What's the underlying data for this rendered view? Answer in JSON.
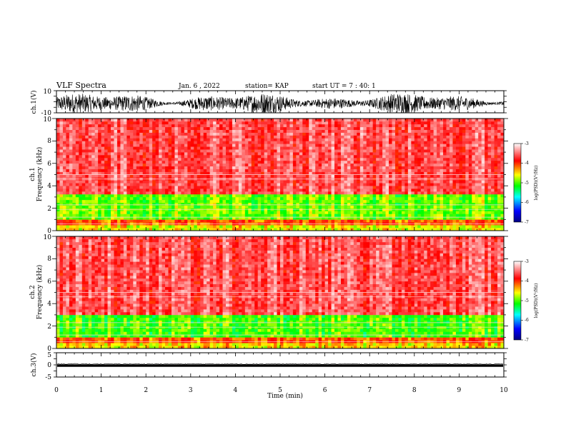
{
  "header": {
    "title": "VLF Spectra",
    "date": "Jan. 6 , 2022",
    "station": "station= KAP",
    "start": "start UT =  7 : 40: 1"
  },
  "colors": {
    "waveform": "#000000",
    "spectrogram_scale": [
      "#000080",
      "#0000ff",
      "#00ffff",
      "#00ff00",
      "#ffff00",
      "#ff0000",
      "#ffffff"
    ]
  },
  "chart_data": [
    {
      "id": "ch1-waveform",
      "type": "line",
      "ylabel": "ch.1(V)",
      "ylim": [
        -10,
        10
      ],
      "yticks": [
        "10",
        "-10"
      ],
      "xlim": [
        0,
        10
      ],
      "note": "dense broadband noise filling most of the amplitude range"
    },
    {
      "id": "ch1-spectrogram",
      "type": "heatmap",
      "ylabel_channel": "ch.1",
      "ylabel": "Frequency (kHz)",
      "ylim": [
        0,
        10
      ],
      "yticks": [
        "0",
        "2",
        "4",
        "6",
        "8",
        "10"
      ],
      "xlim": [
        0,
        10
      ],
      "bands": [
        {
          "from": 0,
          "to": 0.5,
          "level": -4.6
        },
        {
          "from": 0.5,
          "to": 1.0,
          "level": -4.1
        },
        {
          "from": 1.0,
          "to": 3.2,
          "level": -4.9
        },
        {
          "from": 3.2,
          "to": 10,
          "level": -3.6
        }
      ],
      "colorbar": {
        "label": "log(PSD)(V²/Hz)",
        "range": [
          -7,
          -3
        ],
        "ticks": [
          "-3",
          "-4",
          "-5",
          "-6",
          "-7"
        ]
      }
    },
    {
      "id": "ch2-spectrogram",
      "type": "heatmap",
      "ylabel_channel": "ch.2",
      "ylabel": "Frequency (kHz)",
      "ylim": [
        0,
        10
      ],
      "yticks": [
        "0",
        "2",
        "4",
        "6",
        "8",
        "10"
      ],
      "xlim": [
        0,
        10
      ],
      "bands": [
        {
          "from": 0,
          "to": 0.5,
          "level": -4.5
        },
        {
          "from": 0.5,
          "to": 1.0,
          "level": -4.1
        },
        {
          "from": 1.0,
          "to": 3.0,
          "level": -5.0
        },
        {
          "from": 3.0,
          "to": 10,
          "level": -3.6
        }
      ],
      "colorbar": {
        "label": "log(PSD)(V²/Hz)",
        "range": [
          -7,
          -3
        ],
        "ticks": [
          "-3",
          "-4",
          "-5",
          "-6",
          "-7"
        ]
      }
    },
    {
      "id": "ch3-waveform",
      "type": "line",
      "ylabel": "ch.3(V)",
      "ylim": [
        -5,
        5
      ],
      "yticks": [
        "5",
        "0",
        "-5"
      ],
      "xlim": [
        0,
        10
      ],
      "band": [
        -0.8,
        0.2
      ]
    }
  ],
  "x_axis": {
    "label": "Time (min)",
    "ticks": [
      "0",
      "1",
      "2",
      "3",
      "4",
      "5",
      "6",
      "7",
      "8",
      "9",
      "10"
    ]
  }
}
